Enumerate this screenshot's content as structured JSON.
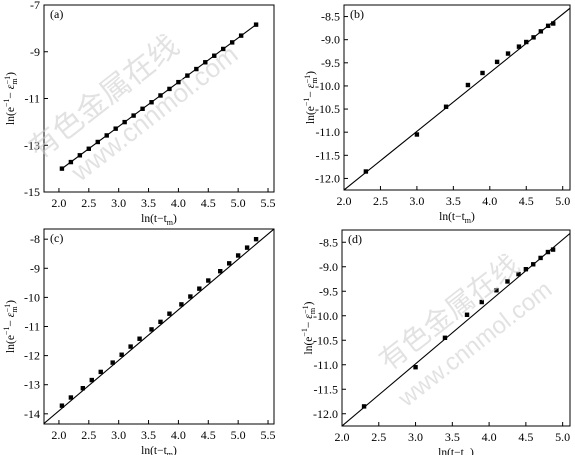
{
  "watermark": {
    "text_cn": "有色金属在线",
    "text_url": "www.cnnmol.com"
  },
  "chart_data": [
    {
      "type": "scatter",
      "panel_label": "(a)",
      "xlabel": "ln(t−t",
      "xlabel_sub": "m",
      "xlabel_end": ")",
      "ylabel": "ln(e",
      "xlim": [
        1.75,
        5.6
      ],
      "ylim": [
        -15,
        -7
      ],
      "xticks": [
        "2.0",
        "2.5",
        "3.0",
        "3.5",
        "4.0",
        "4.5",
        "5.0",
        "5.5"
      ],
      "xtick_values": [
        2.0,
        2.5,
        3.0,
        3.5,
        4.0,
        4.5,
        5.0,
        5.5
      ],
      "yticks": [
        "-15",
        "-13",
        "-11",
        "-9",
        "-7"
      ],
      "ytick_values": [
        -15,
        -13,
        -11,
        -9,
        -7
      ],
      "points_x": [
        2.05,
        2.2,
        2.35,
        2.5,
        2.65,
        2.8,
        2.95,
        3.1,
        3.25,
        3.4,
        3.55,
        3.7,
        3.85,
        4.0,
        4.15,
        4.3,
        4.45,
        4.6,
        4.75,
        4.9,
        5.05,
        5.3
      ],
      "points_y": [
        -14.0,
        -13.72,
        -13.43,
        -13.15,
        -12.86,
        -12.58,
        -12.29,
        -12.01,
        -11.73,
        -11.44,
        -11.16,
        -10.87,
        -10.59,
        -10.3,
        -10.02,
        -9.74,
        -9.45,
        -9.17,
        -8.88,
        -8.6,
        -8.31,
        -7.84
      ],
      "fit_line": [
        [
          2.05,
          -14.0
        ],
        [
          5.3,
          -7.84
        ]
      ]
    },
    {
      "type": "scatter",
      "panel_label": "(b)",
      "xlabel": "ln(t−t",
      "xlabel_sub": "m",
      "xlabel_end": ")",
      "ylabel": "ln(e",
      "xlim": [
        2.0,
        5.1
      ],
      "ylim": [
        -12.25,
        -8.25
      ],
      "xticks": [
        "2.0",
        "2.5",
        "3.0",
        "3.5",
        "4.0",
        "4.5",
        "5.0"
      ],
      "xtick_values": [
        2.0,
        2.5,
        3.0,
        3.5,
        4.0,
        4.5,
        5.0
      ],
      "yticks": [
        "-8.5",
        "-9.0",
        "-9.5",
        "-10.0",
        "-10.5",
        "-11.0",
        "-11.5",
        "-12.0"
      ],
      "ytick_values": [
        -8.5,
        -9.0,
        -9.5,
        -10.0,
        -10.5,
        -11.0,
        -11.5,
        -12.0
      ],
      "points_x": [
        2.3,
        3.0,
        3.4,
        3.7,
        3.9,
        4.1,
        4.25,
        4.4,
        4.5,
        4.6,
        4.7,
        4.8,
        4.87
      ],
      "points_y": [
        -11.85,
        -11.05,
        -10.45,
        -9.98,
        -9.72,
        -9.48,
        -9.3,
        -9.15,
        -9.05,
        -8.95,
        -8.82,
        -8.7,
        -8.65
      ],
      "fit_line": [
        [
          2.0,
          -12.25
        ],
        [
          5.1,
          -8.32
        ]
      ]
    },
    {
      "type": "scatter",
      "panel_label": "(c)",
      "xlabel": "ln(t−t",
      "xlabel_sub": "m",
      "xlabel_end": ")",
      "ylabel": "ln(e",
      "xlim": [
        1.75,
        5.6
      ],
      "ylim": [
        -14.35,
        -7.65
      ],
      "xticks": [
        "2.0",
        "2.5",
        "3.0",
        "3.5",
        "4.0",
        "4.5",
        "5.0",
        "5.5"
      ],
      "xtick_values": [
        2.0,
        2.5,
        3.0,
        3.5,
        4.0,
        4.5,
        5.0,
        5.5
      ],
      "yticks": [
        "-8",
        "-9",
        "-10",
        "-11",
        "-12",
        "-13",
        "-14"
      ],
      "ytick_values": [
        -8,
        -9,
        -10,
        -11,
        -12,
        -13,
        -14
      ],
      "points_x": [
        2.05,
        2.2,
        2.4,
        2.55,
        2.7,
        2.9,
        3.05,
        3.2,
        3.35,
        3.55,
        3.7,
        3.85,
        4.05,
        4.2,
        4.35,
        4.5,
        4.7,
        4.85,
        5.0,
        5.15,
        5.3
      ],
      "points_y": [
        -13.72,
        -13.44,
        -13.12,
        -12.84,
        -12.56,
        -12.24,
        -11.97,
        -11.69,
        -11.42,
        -11.1,
        -10.84,
        -10.56,
        -10.24,
        -9.97,
        -9.7,
        -9.42,
        -9.1,
        -8.83,
        -8.56,
        -8.29,
        -8.0
      ],
      "fit_line": [
        [
          1.75,
          -14.33
        ],
        [
          5.6,
          -7.65
        ]
      ]
    },
    {
      "type": "scatter",
      "panel_label": "(d)",
      "xlabel": "ln(t−t",
      "xlabel_sub": "m",
      "xlabel_end": ")",
      "ylabel": "ln(e",
      "xlim": [
        2.0,
        5.1
      ],
      "ylim": [
        -12.25,
        -8.25
      ],
      "xticks": [
        "2.0",
        "2.5",
        "3.0",
        "3.5",
        "4.0",
        "4.5",
        "5.0"
      ],
      "xtick_values": [
        2.0,
        2.5,
        3.0,
        3.5,
        4.0,
        4.5,
        5.0
      ],
      "yticks": [
        "-8.5",
        "-9.0",
        "-9.5",
        "-10.0",
        "-10.5",
        "-11.0",
        "-11.5",
        "-12.0"
      ],
      "ytick_values": [
        -8.5,
        -9.0,
        -9.5,
        -10.0,
        -10.5,
        -11.0,
        -11.5,
        -12.0
      ],
      "points_x": [
        2.3,
        3.0,
        3.4,
        3.7,
        3.9,
        4.1,
        4.25,
        4.4,
        4.5,
        4.6,
        4.7,
        4.8,
        4.87
      ],
      "points_y": [
        -11.85,
        -11.05,
        -10.45,
        -9.98,
        -9.72,
        -9.48,
        -9.3,
        -9.15,
        -9.05,
        -8.95,
        -8.82,
        -8.7,
        -8.65
      ],
      "fit_line": [
        [
          2.0,
          -12.25
        ],
        [
          5.1,
          -8.32
        ]
      ]
    }
  ]
}
